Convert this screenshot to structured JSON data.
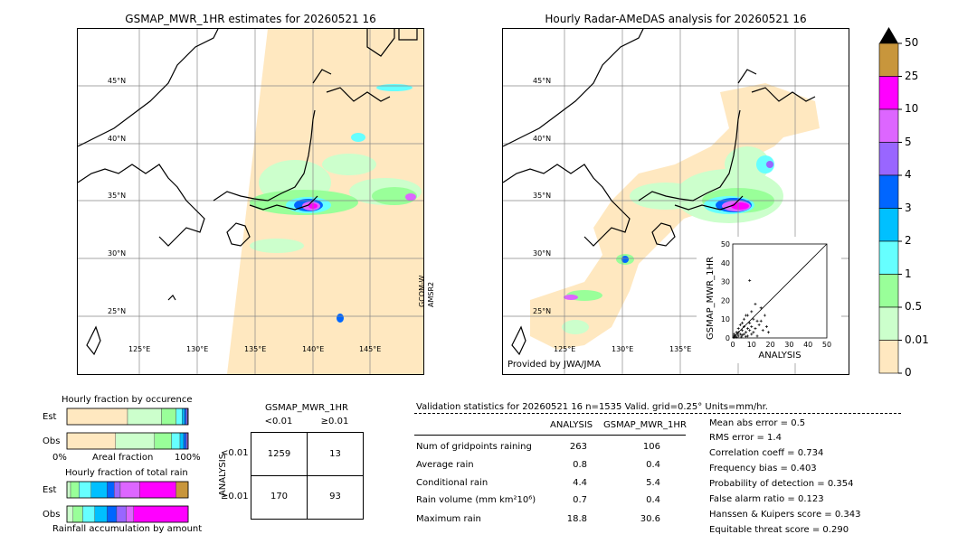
{
  "left_map": {
    "title": "GSMAP_MWR_1HR estimates for 20260521 16",
    "sat_label": [
      "GCOM-W",
      "AMSR2"
    ],
    "lat_ticks": [
      "45°N",
      "40°N",
      "35°N",
      "30°N",
      "25°N"
    ],
    "lon_ticks": [
      "125°E",
      "130°E",
      "135°E",
      "140°E",
      "145°E"
    ]
  },
  "right_map": {
    "title": "Hourly Radar-AMeDAS analysis for 20260521 16",
    "credit": "Provided by JWA/JMA",
    "lat_ticks": [
      "45°N",
      "40°N",
      "35°N",
      "30°N",
      "25°N"
    ],
    "lon_ticks": [
      "125°E",
      "130°E",
      "135°E"
    ]
  },
  "colorbar": {
    "labels": [
      "50",
      "25",
      "10",
      "5",
      "4",
      "3",
      "2",
      "1",
      "0.5",
      "0.01",
      "0"
    ],
    "colors": [
      "#c8963c",
      "#ff00ff",
      "#dd66ff",
      "#9966ff",
      "#0066ff",
      "#00c0ff",
      "#66ffff",
      "#99ff99",
      "#ccffcc",
      "#ffe8c0"
    ],
    "over_color": "#000000"
  },
  "scatter": {
    "ylabel": "GSMAP_MWR_1HR",
    "xlabel": "ANALYSIS",
    "ticks": [
      "0",
      "10",
      "20",
      "30",
      "40",
      "50"
    ]
  },
  "chart_data": [
    {
      "type": "scatter",
      "xlabel": "ANALYSIS",
      "ylabel": "GSMAP_MWR_1HR",
      "xlim": [
        0,
        50
      ],
      "ylim": [
        0,
        50
      ],
      "points": [
        [
          0.5,
          0.3
        ],
        [
          1,
          0.5
        ],
        [
          1.5,
          1
        ],
        [
          2,
          0.4
        ],
        [
          2.5,
          2
        ],
        [
          3,
          1
        ],
        [
          3,
          3
        ],
        [
          4,
          2
        ],
        [
          4.5,
          0.5
        ],
        [
          5,
          1.5
        ],
        [
          5,
          4
        ],
        [
          6,
          2
        ],
        [
          6,
          6
        ],
        [
          7,
          3
        ],
        [
          7,
          0.8
        ],
        [
          8,
          5
        ],
        [
          8,
          1
        ],
        [
          9,
          4
        ],
        [
          9,
          8
        ],
        [
          10,
          2
        ],
        [
          10,
          6
        ],
        [
          11,
          3
        ],
        [
          11,
          10
        ],
        [
          12,
          5
        ],
        [
          13,
          1
        ],
        [
          14,
          7
        ],
        [
          15,
          9
        ],
        [
          16,
          4
        ],
        [
          18,
          6
        ],
        [
          19,
          3
        ],
        [
          8,
          12
        ],
        [
          10,
          14
        ],
        [
          12,
          18
        ],
        [
          9,
          30.6
        ],
        [
          6,
          10
        ],
        [
          4,
          7
        ],
        [
          3,
          5
        ],
        [
          2,
          3
        ],
        [
          1,
          1.2
        ],
        [
          0.8,
          2
        ],
        [
          5,
          8
        ],
        [
          7,
          12
        ],
        [
          13,
          9
        ],
        [
          15,
          16
        ],
        [
          17,
          12
        ]
      ]
    },
    {
      "type": "bar",
      "title": "Hourly fraction by occurence",
      "categories": [
        "Est",
        "Obs"
      ],
      "series": [
        {
          "name": "0",
          "values": [
            0.5,
            0.4
          ]
        },
        {
          "name": "0.01",
          "values": [
            0.28,
            0.32
          ]
        },
        {
          "name": "0.5",
          "values": [
            0.12,
            0.14
          ]
        },
        {
          "name": "1",
          "values": [
            0.05,
            0.07
          ]
        },
        {
          "name": "2",
          "values": [
            0.02,
            0.03
          ]
        },
        {
          "name": "3",
          "values": [
            0.015,
            0.02
          ]
        },
        {
          "name": "4",
          "values": [
            0.01,
            0.01
          ]
        },
        {
          "name": "5",
          "values": [
            0.005,
            0.007
          ]
        }
      ],
      "xlabel": "Areal fraction",
      "xticks": [
        "0%",
        "100%"
      ]
    },
    {
      "type": "bar",
      "title": "Hourly fraction of total rain",
      "categories": [
        "Est",
        "Obs"
      ],
      "series": [
        {
          "name": "0.01",
          "values": [
            0.03,
            0.05
          ]
        },
        {
          "name": "0.5",
          "values": [
            0.07,
            0.08
          ]
        },
        {
          "name": "1",
          "values": [
            0.1,
            0.1
          ]
        },
        {
          "name": "2",
          "values": [
            0.13,
            0.1
          ]
        },
        {
          "name": "3",
          "values": [
            0.06,
            0.08
          ]
        },
        {
          "name": "4",
          "values": [
            0.05,
            0.08
          ]
        },
        {
          "name": "5",
          "values": [
            0.16,
            0.06
          ]
        },
        {
          "name": "10",
          "values": [
            0.3,
            0.45
          ]
        },
        {
          "name": "25",
          "values": [
            0.1,
            0.0
          ]
        }
      ],
      "xlabel": "Rainfall accumulation by amount"
    },
    {
      "type": "table",
      "title": "GSMAP_MWR_1HR",
      "col_headers": [
        "<0.01",
        "≥0.01"
      ],
      "row_axis_label": "ANALYSIS",
      "row_headers": [
        "<0.01",
        "≥0.01"
      ],
      "cells": [
        [
          "1259",
          "13"
        ],
        [
          "170",
          "93"
        ]
      ]
    },
    {
      "type": "table",
      "title": "Validation statistics for 20260521 16  n=1535 Valid. grid=0.25° Units=mm/hr.",
      "col_headers": [
        "ANALYSIS",
        "GSMAP_MWR_1HR"
      ],
      "rows": [
        {
          "label": "Num of gridpoints raining",
          "a": "263",
          "b": "106"
        },
        {
          "label": "Average rain",
          "a": "0.8",
          "b": "0.4"
        },
        {
          "label": "Conditional rain",
          "a": "4.4",
          "b": "5.4"
        },
        {
          "label": "Rain volume (mm km²10⁶)",
          "a": "0.7",
          "b": "0.4"
        },
        {
          "label": "Maximum rain",
          "a": "18.8",
          "b": "30.6"
        }
      ]
    }
  ],
  "scores": [
    "Mean abs error =    0.5",
    "RMS error =    1.4",
    "Correlation coeff =  0.734",
    "Frequency bias =  0.403",
    "Probability of detection =  0.354",
    "False alarm ratio =  0.123",
    "Hanssen & Kuipers score =  0.343",
    "Equitable threat score =  0.290"
  ]
}
